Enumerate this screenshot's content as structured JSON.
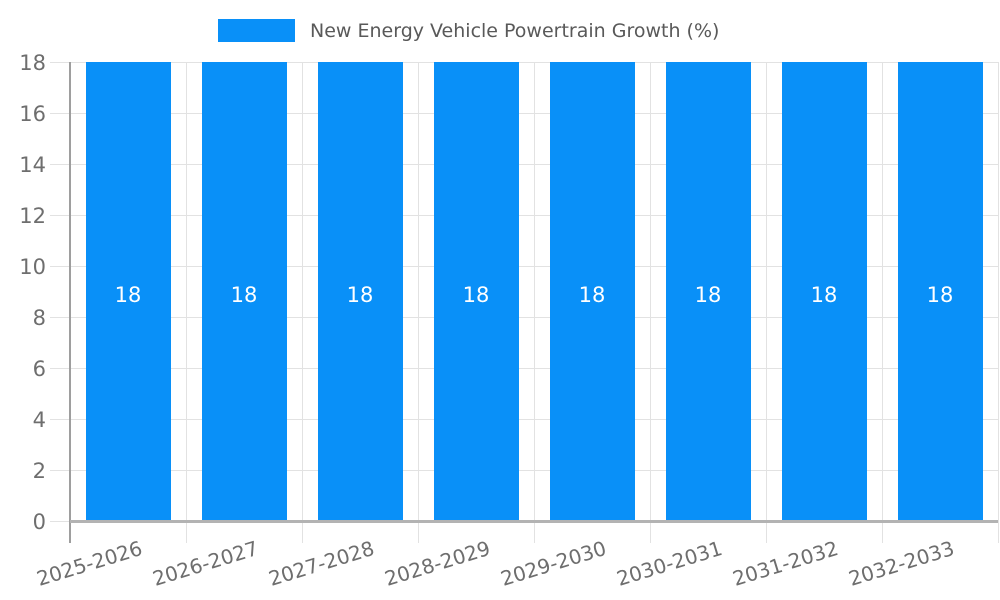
{
  "chart_data": {
    "type": "bar",
    "title": "New Energy Vehicle Powertrain Growth (%)",
    "categories": [
      "2025-2026",
      "2026-2027",
      "2027-2028",
      "2028-2029",
      "2029-2030",
      "2030-2031",
      "2031-2032",
      "2032-2033"
    ],
    "values": [
      18,
      18,
      18,
      18,
      18,
      18,
      18,
      18
    ],
    "bar_value_labels": [
      "18",
      "18",
      "18",
      "18",
      "18",
      "18",
      "18",
      "18"
    ],
    "xlabel": "",
    "ylabel": "",
    "ylim": [
      0,
      18
    ],
    "yticks": [
      0,
      2,
      4,
      6,
      8,
      10,
      12,
      14,
      16,
      18
    ],
    "ytick_labels": [
      "0",
      "2",
      "4",
      "6",
      "8",
      "10",
      "12",
      "14",
      "16",
      "18"
    ],
    "grid": true,
    "legend_position": "top-center",
    "legend_entries": [
      "New Energy Vehicle Powertrain Growth (%)"
    ],
    "colors": {
      "bar": "#0990F8",
      "value_label": "#ffffff",
      "tick_label": "#6e6e6e",
      "legend_text": "#595959",
      "grid": "#e2e2e2",
      "axis_left": "#9e9e9e",
      "axis_bottom": "#b3b3b3",
      "background": "#ffffff"
    }
  }
}
